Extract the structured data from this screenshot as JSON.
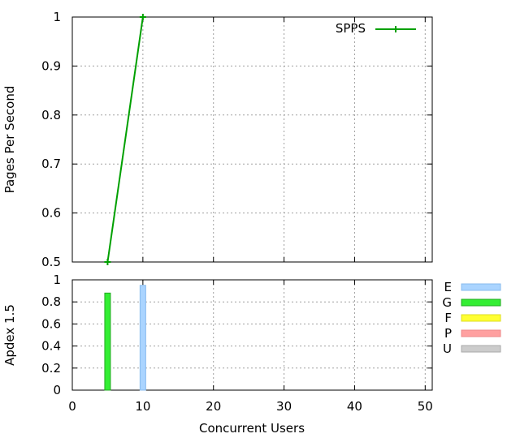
{
  "chart_data": [
    {
      "type": "line",
      "title": "",
      "xlabel": "",
      "ylabel": "Pages Per Second",
      "xlim": [
        0,
        51
      ],
      "ylim": [
        0.5,
        1
      ],
      "x_ticks": [
        0,
        10,
        20,
        30,
        40,
        50
      ],
      "y_ticks": [
        "0.5",
        "0.6",
        "0.7",
        "0.8",
        "0.9",
        "1"
      ],
      "grid": true,
      "legend_position": "top-right",
      "series": [
        {
          "name": "SPPS",
          "color": "#00a000",
          "x": [
            5,
            10
          ],
          "y": [
            0.5,
            1
          ]
        }
      ]
    },
    {
      "type": "bar",
      "title": "",
      "xlabel": "Concurrent Users",
      "ylabel": "Apdex 1.5",
      "xlim": [
        0,
        51
      ],
      "ylim": [
        0,
        1
      ],
      "x_ticks": [
        "0",
        "10",
        "20",
        "30",
        "40",
        "50"
      ],
      "y_ticks": [
        "0",
        "0.2",
        "0.4",
        "0.6",
        "0.8",
        "1"
      ],
      "grid": true,
      "legend_position": "right",
      "bars": [
        {
          "x": 5,
          "value": 0.88,
          "category": "G"
        },
        {
          "x": 10,
          "value": 0.95,
          "category": "E"
        }
      ],
      "legend": [
        {
          "name": "E",
          "color": "#aad4ff",
          "border": "#88bbee"
        },
        {
          "name": "G",
          "color": "#33ee33",
          "border": "#22aa22"
        },
        {
          "name": "F",
          "color": "#ffff33",
          "border": "#dddd22"
        },
        {
          "name": "P",
          "color": "#ffa0a0",
          "border": "#ee8888"
        },
        {
          "name": "U",
          "color": "#cccccc",
          "border": "#aaaaaa"
        }
      ]
    }
  ]
}
